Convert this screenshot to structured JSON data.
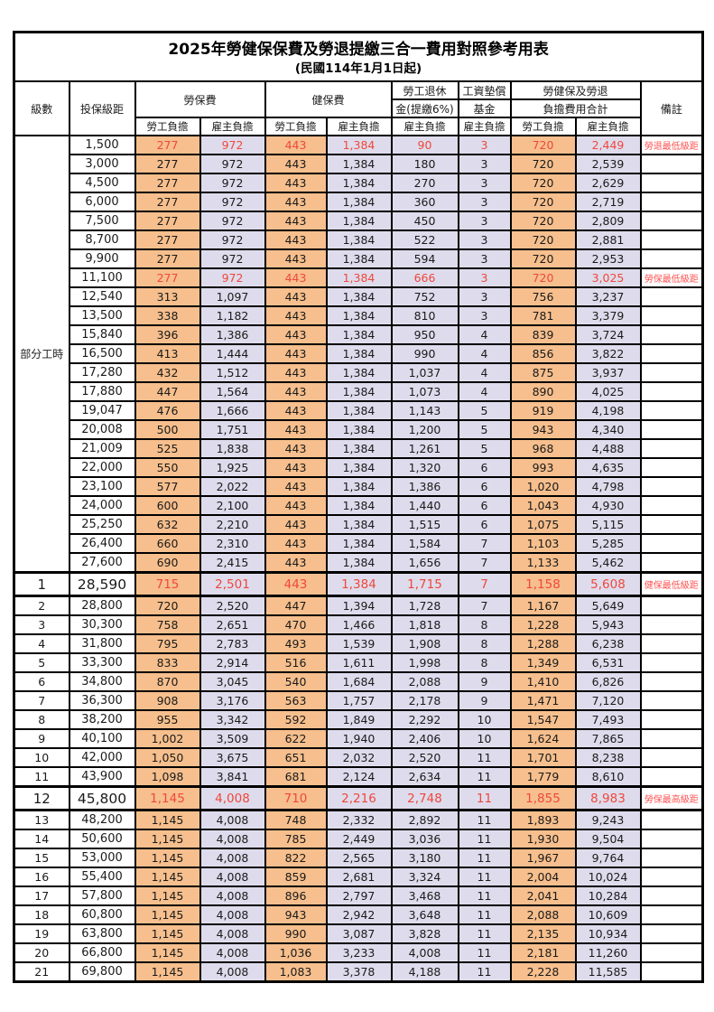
{
  "title": "2025年勞健保保費及勞退提繳三合一費用對照參考用表",
  "subtitle": "(民國114年1月1日起)",
  "header": {
    "level": "級數",
    "bracket": "投保級距",
    "labor_fee": "勞保費",
    "health_fee": "健保費",
    "pension_line1": "勞工退休",
    "pension_line2": "金(提繳6%)",
    "wage_fund_line1": "工資墊償",
    "wage_fund_line2": "基金",
    "total_line1": "勞健保及勞退",
    "total_line2": "負擔費用合計",
    "remark": "備註",
    "employee_label": "勞工負擔",
    "employer_label": "雇主負擔"
  },
  "part_time": {
    "label": "部分工時",
    "rowspan": 23
  },
  "colors": {
    "employee_bg": "#f6bf8d",
    "employer_bg": "#dedcec",
    "highlight_text": "#f0473c",
    "remark_text": "#ff5252",
    "border": "#000000"
  },
  "rows": [
    {
      "pt": true,
      "bracket": "1,500",
      "values": [
        "277",
        "972",
        "443",
        "1,384",
        "90",
        "3",
        "720",
        "2,449"
      ],
      "remark": "勞退最低級距",
      "red": true
    },
    {
      "pt": true,
      "bracket": "3,000",
      "values": [
        "277",
        "972",
        "443",
        "1,384",
        "180",
        "3",
        "720",
        "2,539"
      ],
      "remark": ""
    },
    {
      "pt": true,
      "bracket": "4,500",
      "values": [
        "277",
        "972",
        "443",
        "1,384",
        "270",
        "3",
        "720",
        "2,629"
      ],
      "remark": ""
    },
    {
      "pt": true,
      "bracket": "6,000",
      "values": [
        "277",
        "972",
        "443",
        "1,384",
        "360",
        "3",
        "720",
        "2,719"
      ],
      "remark": ""
    },
    {
      "pt": true,
      "bracket": "7,500",
      "values": [
        "277",
        "972",
        "443",
        "1,384",
        "450",
        "3",
        "720",
        "2,809"
      ],
      "remark": ""
    },
    {
      "pt": true,
      "bracket": "8,700",
      "values": [
        "277",
        "972",
        "443",
        "1,384",
        "522",
        "3",
        "720",
        "2,881"
      ],
      "remark": ""
    },
    {
      "pt": true,
      "bracket": "9,900",
      "values": [
        "277",
        "972",
        "443",
        "1,384",
        "594",
        "3",
        "720",
        "2,953"
      ],
      "remark": ""
    },
    {
      "pt": true,
      "bracket": "11,100",
      "values": [
        "277",
        "972",
        "443",
        "1,384",
        "666",
        "3",
        "720",
        "3,025"
      ],
      "remark": "勞保最低級距",
      "red": true
    },
    {
      "pt": true,
      "bracket": "12,540",
      "values": [
        "313",
        "1,097",
        "443",
        "1,384",
        "752",
        "3",
        "756",
        "3,237"
      ],
      "remark": ""
    },
    {
      "pt": true,
      "bracket": "13,500",
      "values": [
        "338",
        "1,182",
        "443",
        "1,384",
        "810",
        "3",
        "781",
        "3,379"
      ],
      "remark": ""
    },
    {
      "pt": true,
      "bracket": "15,840",
      "values": [
        "396",
        "1,386",
        "443",
        "1,384",
        "950",
        "4",
        "839",
        "3,724"
      ],
      "remark": ""
    },
    {
      "pt": true,
      "bracket": "16,500",
      "values": [
        "413",
        "1,444",
        "443",
        "1,384",
        "990",
        "4",
        "856",
        "3,822"
      ],
      "remark": ""
    },
    {
      "pt": true,
      "bracket": "17,280",
      "values": [
        "432",
        "1,512",
        "443",
        "1,384",
        "1,037",
        "4",
        "875",
        "3,937"
      ],
      "remark": ""
    },
    {
      "pt": true,
      "bracket": "17,880",
      "values": [
        "447",
        "1,564",
        "443",
        "1,384",
        "1,073",
        "4",
        "890",
        "4,025"
      ],
      "remark": ""
    },
    {
      "pt": true,
      "bracket": "19,047",
      "values": [
        "476",
        "1,666",
        "443",
        "1,384",
        "1,143",
        "5",
        "919",
        "4,198"
      ],
      "remark": ""
    },
    {
      "pt": true,
      "bracket": "20,008",
      "values": [
        "500",
        "1,751",
        "443",
        "1,384",
        "1,200",
        "5",
        "943",
        "4,340"
      ],
      "remark": ""
    },
    {
      "pt": true,
      "bracket": "21,009",
      "values": [
        "525",
        "1,838",
        "443",
        "1,384",
        "1,261",
        "5",
        "968",
        "4,488"
      ],
      "remark": ""
    },
    {
      "pt": true,
      "bracket": "22,000",
      "values": [
        "550",
        "1,925",
        "443",
        "1,384",
        "1,320",
        "6",
        "993",
        "4,635"
      ],
      "remark": ""
    },
    {
      "pt": true,
      "bracket": "23,100",
      "values": [
        "577",
        "2,022",
        "443",
        "1,384",
        "1,386",
        "6",
        "1,020",
        "4,798"
      ],
      "remark": ""
    },
    {
      "pt": true,
      "bracket": "24,000",
      "values": [
        "600",
        "2,100",
        "443",
        "1,384",
        "1,440",
        "6",
        "1,043",
        "4,930"
      ],
      "remark": ""
    },
    {
      "pt": true,
      "bracket": "25,250",
      "values": [
        "632",
        "2,210",
        "443",
        "1,384",
        "1,515",
        "6",
        "1,075",
        "5,115"
      ],
      "remark": ""
    },
    {
      "pt": true,
      "bracket": "26,400",
      "values": [
        "660",
        "2,310",
        "443",
        "1,384",
        "1,584",
        "7",
        "1,103",
        "5,285"
      ],
      "remark": ""
    },
    {
      "pt": true,
      "bracket": "27,600",
      "values": [
        "690",
        "2,415",
        "443",
        "1,384",
        "1,656",
        "7",
        "1,133",
        "5,462"
      ],
      "remark": ""
    },
    {
      "level": "1",
      "bracket": "28,590",
      "values": [
        "715",
        "2,501",
        "443",
        "1,384",
        "1,715",
        "7",
        "1,158",
        "5,608"
      ],
      "remark": "健保最低級距",
      "red": true,
      "major": true
    },
    {
      "level": "2",
      "bracket": "28,800",
      "values": [
        "720",
        "2,520",
        "447",
        "1,394",
        "1,728",
        "7",
        "1,167",
        "5,649"
      ],
      "remark": ""
    },
    {
      "level": "3",
      "bracket": "30,300",
      "values": [
        "758",
        "2,651",
        "470",
        "1,466",
        "1,818",
        "8",
        "1,228",
        "5,943"
      ],
      "remark": ""
    },
    {
      "level": "4",
      "bracket": "31,800",
      "values": [
        "795",
        "2,783",
        "493",
        "1,539",
        "1,908",
        "8",
        "1,288",
        "6,238"
      ],
      "remark": ""
    },
    {
      "level": "5",
      "bracket": "33,300",
      "values": [
        "833",
        "2,914",
        "516",
        "1,611",
        "1,998",
        "8",
        "1,349",
        "6,531"
      ],
      "remark": ""
    },
    {
      "level": "6",
      "bracket": "34,800",
      "values": [
        "870",
        "3,045",
        "540",
        "1,684",
        "2,088",
        "9",
        "1,410",
        "6,826"
      ],
      "remark": ""
    },
    {
      "level": "7",
      "bracket": "36,300",
      "values": [
        "908",
        "3,176",
        "563",
        "1,757",
        "2,178",
        "9",
        "1,471",
        "7,120"
      ],
      "remark": ""
    },
    {
      "level": "8",
      "bracket": "38,200",
      "values": [
        "955",
        "3,342",
        "592",
        "1,849",
        "2,292",
        "10",
        "1,547",
        "7,493"
      ],
      "remark": ""
    },
    {
      "level": "9",
      "bracket": "40,100",
      "values": [
        "1,002",
        "3,509",
        "622",
        "1,940",
        "2,406",
        "10",
        "1,624",
        "7,865"
      ],
      "remark": ""
    },
    {
      "level": "10",
      "bracket": "42,000",
      "values": [
        "1,050",
        "3,675",
        "651",
        "2,032",
        "2,520",
        "11",
        "1,701",
        "8,238"
      ],
      "remark": ""
    },
    {
      "level": "11",
      "bracket": "43,900",
      "values": [
        "1,098",
        "3,841",
        "681",
        "2,124",
        "2,634",
        "11",
        "1,779",
        "8,610"
      ],
      "remark": ""
    },
    {
      "level": "12",
      "bracket": "45,800",
      "values": [
        "1,145",
        "4,008",
        "710",
        "2,216",
        "2,748",
        "11",
        "1,855",
        "8,983"
      ],
      "remark": "勞保最高級距",
      "red": true,
      "major": true
    },
    {
      "level": "13",
      "bracket": "48,200",
      "values": [
        "1,145",
        "4,008",
        "748",
        "2,332",
        "2,892",
        "11",
        "1,893",
        "9,243"
      ],
      "remark": ""
    },
    {
      "level": "14",
      "bracket": "50,600",
      "values": [
        "1,145",
        "4,008",
        "785",
        "2,449",
        "3,036",
        "11",
        "1,930",
        "9,504"
      ],
      "remark": ""
    },
    {
      "level": "15",
      "bracket": "53,000",
      "values": [
        "1,145",
        "4,008",
        "822",
        "2,565",
        "3,180",
        "11",
        "1,967",
        "9,764"
      ],
      "remark": ""
    },
    {
      "level": "16",
      "bracket": "55,400",
      "values": [
        "1,145",
        "4,008",
        "859",
        "2,681",
        "3,324",
        "11",
        "2,004",
        "10,024"
      ],
      "remark": ""
    },
    {
      "level": "17",
      "bracket": "57,800",
      "values": [
        "1,145",
        "4,008",
        "896",
        "2,797",
        "3,468",
        "11",
        "2,041",
        "10,284"
      ],
      "remark": ""
    },
    {
      "level": "18",
      "bracket": "60,800",
      "values": [
        "1,145",
        "4,008",
        "943",
        "2,942",
        "3,648",
        "11",
        "2,088",
        "10,609"
      ],
      "remark": ""
    },
    {
      "level": "19",
      "bracket": "63,800",
      "values": [
        "1,145",
        "4,008",
        "990",
        "3,087",
        "3,828",
        "11",
        "2,135",
        "10,934"
      ],
      "remark": ""
    },
    {
      "level": "20",
      "bracket": "66,800",
      "values": [
        "1,145",
        "4,008",
        "1,036",
        "3,233",
        "4,008",
        "11",
        "2,181",
        "11,260"
      ],
      "remark": ""
    },
    {
      "level": "21",
      "bracket": "69,800",
      "values": [
        "1,145",
        "4,008",
        "1,083",
        "3,378",
        "4,188",
        "11",
        "2,228",
        "11,585"
      ],
      "remark": ""
    }
  ]
}
